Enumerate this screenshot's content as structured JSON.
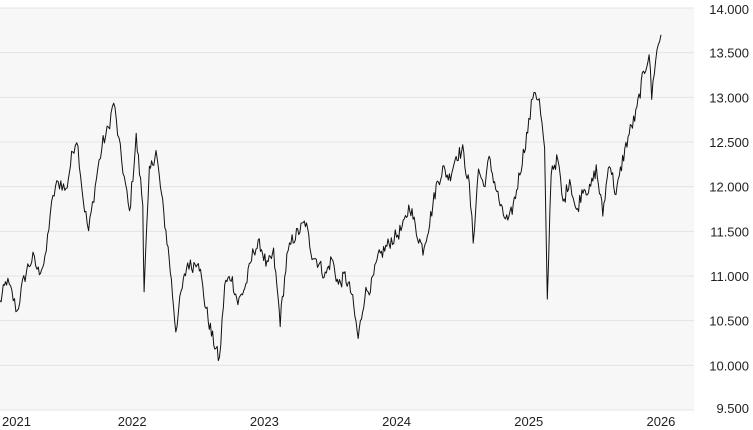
{
  "chart_data": {
    "type": "line",
    "title": "",
    "xlabel": "",
    "ylabel": "",
    "x_ticks": [
      "2021",
      "2022",
      "2023",
      "2024",
      "2025",
      "2026"
    ],
    "y_ticks": [
      "9.500",
      "10.000",
      "10.500",
      "11.000",
      "11.500",
      "12.000",
      "12.500",
      "13.000",
      "13.500",
      "14.000"
    ],
    "ylim": [
      9500,
      14000
    ],
    "xlim": [
      2021.0,
      2026.25
    ],
    "grid": "horizontal",
    "background_color": "#f7f7f7",
    "line_color": "#111111",
    "grid_color": "#e4e4e4",
    "series": [
      {
        "x": [
          2021.0,
          2021.05,
          2021.09,
          2021.13,
          2021.17,
          2021.21,
          2021.25,
          2021.29,
          2021.34,
          2021.38,
          2021.42,
          2021.46,
          2021.5,
          2021.55,
          2021.58,
          2021.6,
          2021.63,
          2021.67,
          2021.71,
          2021.74,
          2021.78,
          2021.82,
          2021.86,
          2021.9,
          2021.94,
          2021.98,
          2022.03,
          2022.08,
          2022.09,
          2022.13,
          2022.18,
          2022.23,
          2022.28,
          2022.33,
          2022.37,
          2022.42,
          2022.45,
          2022.5,
          2022.55,
          2022.6,
          2022.66,
          2022.7,
          2022.75,
          2022.8,
          2022.86,
          2022.92,
          2022.97,
          2023.02,
          2023.07,
          2023.12,
          2023.17,
          2023.21,
          2023.26,
          2023.31,
          2023.36,
          2023.41,
          2023.46,
          2023.51,
          2023.56,
          2023.61,
          2023.66,
          2023.71,
          2023.76,
          2023.81,
          2023.86,
          2023.91,
          2023.96,
          2024.0,
          2024.05,
          2024.1,
          2024.15,
          2024.2,
          2024.25,
          2024.3,
          2024.35,
          2024.4,
          2024.45,
          2024.5,
          2024.55,
          2024.58,
          2024.62,
          2024.66,
          2024.7,
          2024.75,
          2024.8,
          2024.85,
          2024.9,
          2024.95,
          2025.0,
          2025.04,
          2025.08,
          2025.12,
          2025.14,
          2025.17,
          2025.22,
          2025.26,
          2025.31,
          2025.36,
          2025.41,
          2025.46,
          2025.51,
          2025.56,
          2025.61,
          2025.66,
          2025.71,
          2025.76,
          2025.81,
          2025.86,
          2025.91,
          2025.93,
          2025.96,
          2026.0
        ],
        "y": [
          10700,
          10950,
          10800,
          10600,
          10900,
          11100,
          11200,
          11050,
          11150,
          11700,
          12000,
          12050,
          11950,
          12400,
          12550,
          12300,
          11850,
          11500,
          11900,
          12200,
          12500,
          12650,
          12950,
          12500,
          12100,
          11700,
          12550,
          11800,
          10850,
          12150,
          12400,
          11800,
          11200,
          10400,
          10800,
          11150,
          11100,
          11200,
          10700,
          10350,
          10050,
          10900,
          11000,
          10700,
          10900,
          11300,
          11350,
          11100,
          11250,
          10500,
          11200,
          11400,
          11500,
          11600,
          11250,
          11150,
          11000,
          11200,
          10900,
          11000,
          10800,
          10300,
          10800,
          10900,
          11200,
          11300,
          11400,
          11450,
          11550,
          11800,
          11500,
          11300,
          11600,
          12000,
          12200,
          12100,
          12350,
          12400,
          12000,
          11400,
          12200,
          12000,
          12300,
          12000,
          11700,
          11600,
          11900,
          12300,
          12700,
          13100,
          12950,
          12400,
          10700,
          12200,
          12300,
          11800,
          12100,
          11700,
          12000,
          11950,
          12200,
          11700,
          12300,
          11900,
          12300,
          12600,
          12800,
          13200,
          13500,
          13000,
          13450,
          13700
        ]
      }
    ]
  }
}
